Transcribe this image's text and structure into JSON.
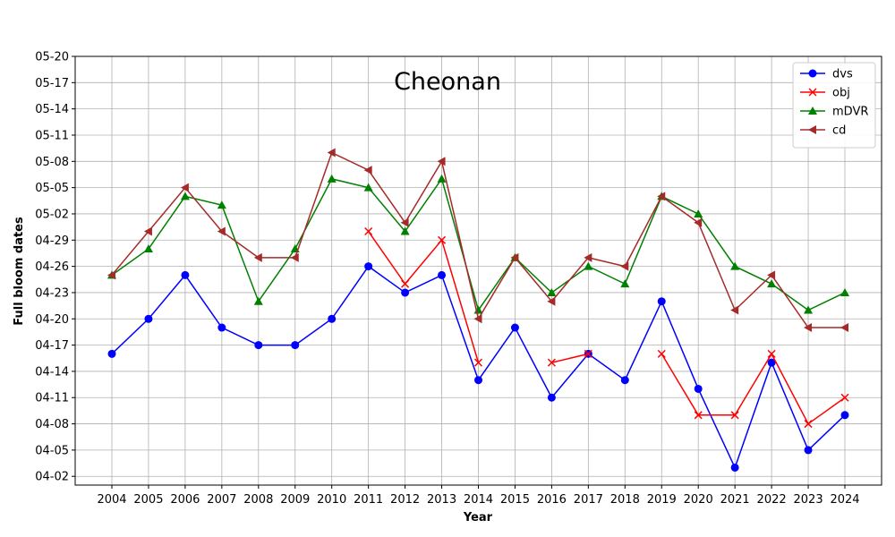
{
  "chart_data": {
    "type": "line",
    "title": "Cheonan",
    "xlabel": "Year",
    "ylabel": "Full bloom dates",
    "categories": [
      "2004",
      "2005",
      "2006",
      "2007",
      "2008",
      "2009",
      "2010",
      "2011",
      "2012",
      "2013",
      "2014",
      "2015",
      "2016",
      "2017",
      "2018",
      "2019",
      "2020",
      "2021",
      "2022",
      "2023",
      "2024"
    ],
    "y_unit": "day of year (month-day)",
    "y_ticks": [
      "04-02",
      "04-05",
      "04-08",
      "04-11",
      "04-14",
      "04-17",
      "04-20",
      "04-23",
      "04-26",
      "04-29",
      "05-02",
      "05-05",
      "05-08",
      "05-11",
      "05-14",
      "05-17",
      "05-20"
    ],
    "ylim": [
      "04-01",
      "05-20"
    ],
    "grid": true,
    "legend_position": "top-right",
    "series": [
      {
        "name": "dvs",
        "color": "#0000ff",
        "marker": "circle",
        "values": [
          "04-16",
          "04-20",
          "04-25",
          "04-19",
          "04-17",
          "04-17",
          "04-20",
          "04-26",
          "04-23",
          "04-25",
          "04-13",
          "04-19",
          "04-11",
          "04-16",
          "04-13",
          "04-22",
          "04-12",
          "04-03",
          "04-15",
          "04-05",
          "04-09"
        ]
      },
      {
        "name": "obj",
        "color": "#ff0000",
        "marker": "x",
        "values": [
          null,
          null,
          null,
          null,
          null,
          null,
          null,
          "04-30",
          "04-24",
          "04-29",
          "04-15",
          null,
          "04-15",
          "04-16",
          null,
          "04-16",
          "04-09",
          "04-09",
          "04-16",
          "04-08",
          "04-11"
        ]
      },
      {
        "name": "mDVR",
        "color": "#008000",
        "marker": "triangle-up",
        "values": [
          "04-25",
          "04-28",
          "05-04",
          "05-03",
          "04-22",
          "04-28",
          "05-06",
          "05-05",
          "04-30",
          "05-06",
          "04-21",
          "04-27",
          "04-23",
          "04-26",
          "04-24",
          "05-04",
          "05-02",
          "04-26",
          "04-24",
          "04-21",
          "04-23"
        ]
      },
      {
        "name": "cd",
        "color": "#a52a2a",
        "marker": "triangle-left",
        "values": [
          "04-25",
          "04-30",
          "05-05",
          "04-30",
          "04-27",
          "04-27",
          "05-09",
          "05-07",
          "05-01",
          "05-08",
          "04-20",
          "04-27",
          "04-22",
          "04-27",
          "04-26",
          "05-04",
          "05-01",
          "04-21",
          "04-25",
          "04-19",
          "04-19"
        ]
      }
    ]
  }
}
